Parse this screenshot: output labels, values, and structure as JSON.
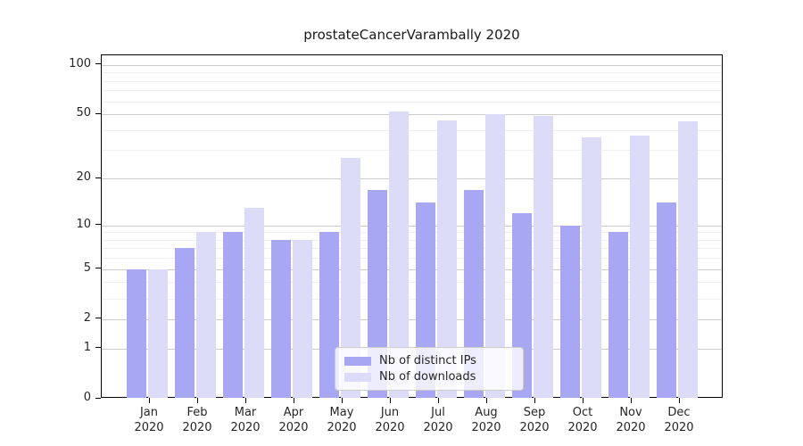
{
  "chart_data": {
    "type": "bar",
    "title": "prostateCancerVarambally 2020",
    "categories": [
      "Jan",
      "Feb",
      "Mar",
      "Apr",
      "May",
      "Jun",
      "Jul",
      "Aug",
      "Sep",
      "Oct",
      "Nov",
      "Dec"
    ],
    "year_label": "2020",
    "series": [
      {
        "name": "Nb of distinct IPs",
        "color": "#a7a7f4",
        "values": [
          5,
          7,
          9,
          8,
          9,
          17,
          14,
          17,
          12,
          10,
          9,
          14
        ]
      },
      {
        "name": "Nb of downloads",
        "color": "#dcdcf8",
        "values": [
          5,
          9,
          13,
          8,
          27,
          52,
          46,
          50,
          49,
          36,
          37,
          45
        ]
      }
    ],
    "y_scale": "log1p",
    "y_ticks": [
      0,
      1,
      2,
      5,
      10,
      20,
      50,
      100
    ],
    "y_minor_ticks": [
      3,
      4,
      6,
      7,
      8,
      9,
      30,
      40,
      60,
      70,
      80,
      90
    ],
    "ylim": [
      0,
      100
    ],
    "grid": true,
    "legend_position": "bottom-center",
    "colors": {
      "major_grid": "#cccccc",
      "minor_grid": "#efefef",
      "axis": "#000000",
      "text": "#262626"
    }
  }
}
